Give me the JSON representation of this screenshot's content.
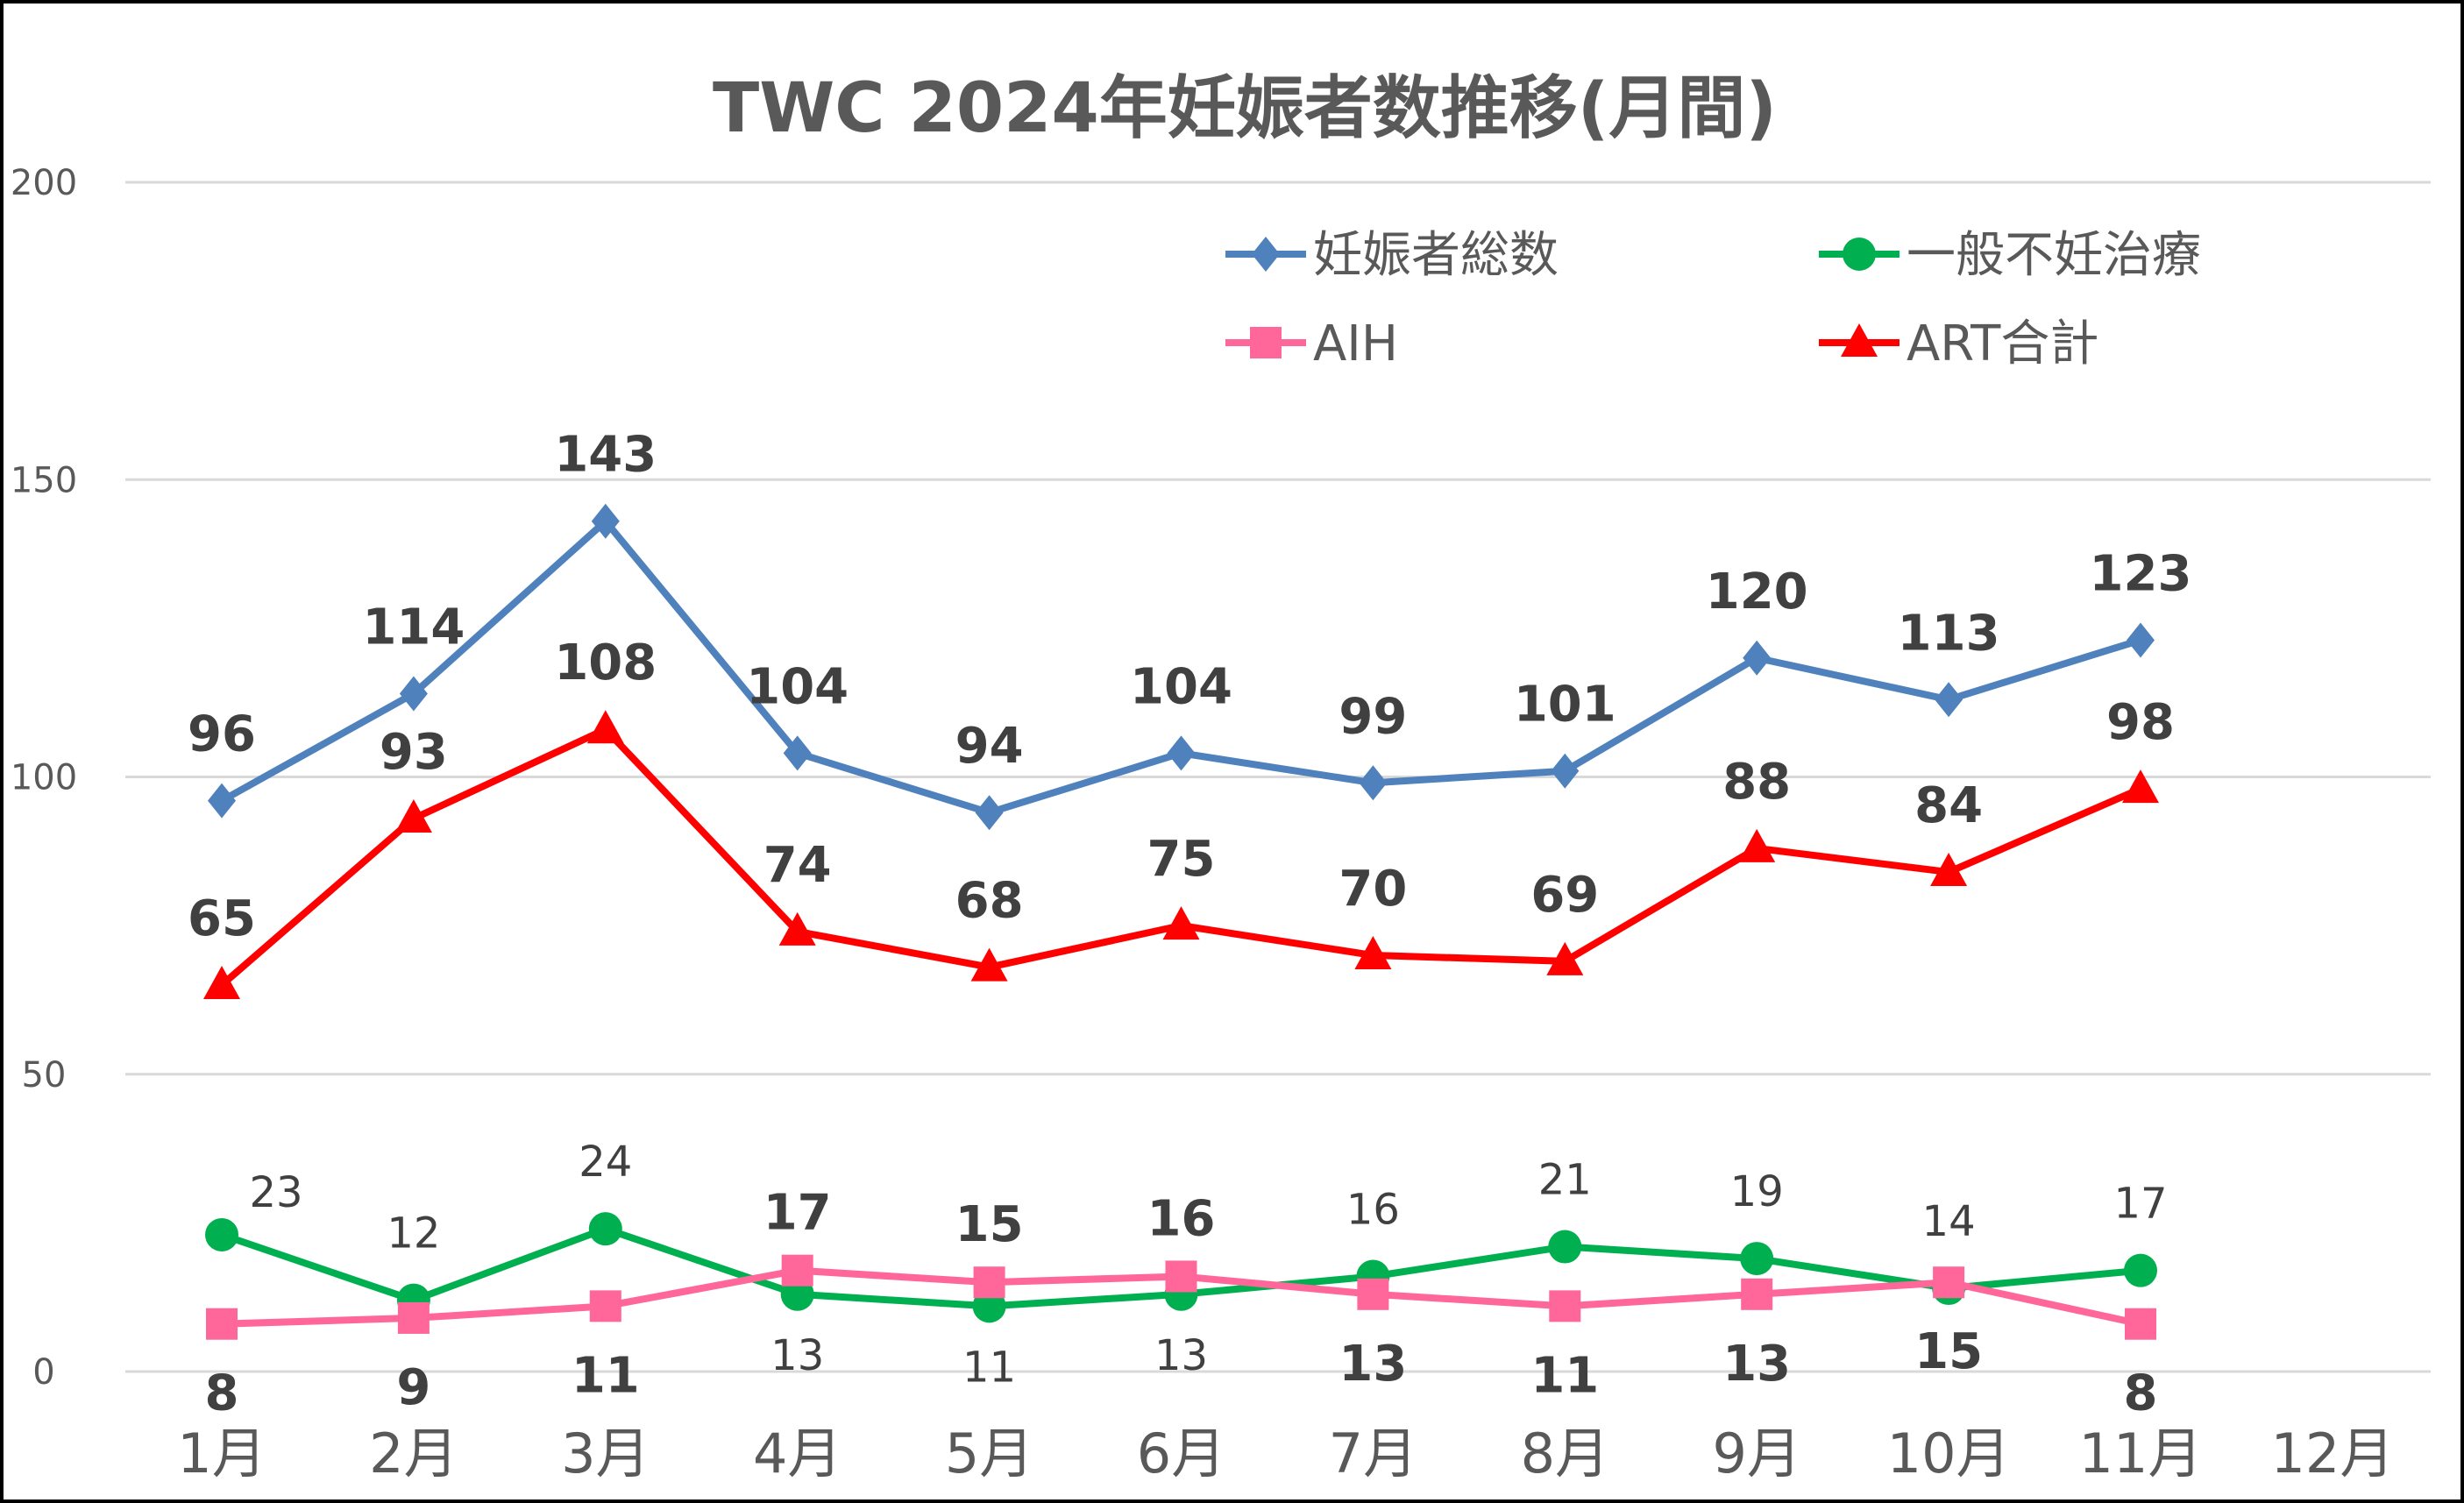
{
  "chart_data": {
    "type": "line",
    "title": "TWC 2024年妊娠者数推移(月間)",
    "categories": [
      "1月",
      "2月",
      "3月",
      "4月",
      "5月",
      "6月",
      "7月",
      "8月",
      "9月",
      "10月",
      "11月",
      "12月"
    ],
    "ylim": [
      0,
      200
    ],
    "yticks": [
      0,
      50,
      100,
      150,
      200
    ],
    "grid": true,
    "legend_placement": "top-right",
    "series": [
      {
        "name": "妊娠者総数",
        "color": "#4F81BD",
        "marker": "diamond",
        "label_style": "bold",
        "values": [
          96,
          114,
          143,
          104,
          94,
          104,
          99,
          101,
          120,
          113,
          123,
          null
        ]
      },
      {
        "name": "一般不妊治療",
        "color": "#00B050",
        "marker": "circle",
        "label_style": "normal",
        "values": [
          23,
          12,
          24,
          13,
          11,
          13,
          16,
          21,
          19,
          14,
          17,
          null
        ]
      },
      {
        "name": "AIH",
        "color": "#FF6699",
        "marker": "square",
        "label_style": "bold",
        "values": [
          8,
          9,
          11,
          17,
          15,
          16,
          13,
          11,
          13,
          15,
          8,
          null
        ]
      },
      {
        "name": "ART合計",
        "color": "#FF0000",
        "marker": "triangle",
        "label_style": "bold",
        "values": [
          65,
          93,
          108,
          74,
          68,
          75,
          70,
          69,
          88,
          84,
          98,
          null
        ]
      }
    ]
  }
}
